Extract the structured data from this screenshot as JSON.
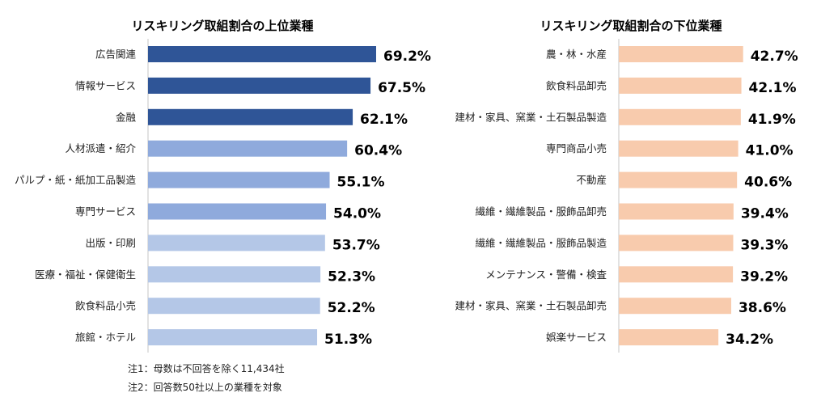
{
  "chart_data": [
    {
      "type": "bar",
      "orientation": "horizontal",
      "title": "リスキリング取組割合の上位業種",
      "categories": [
        "広告関連",
        "情報サービス",
        "金融",
        "人材派遣・紹介",
        "パルプ・紙・紙加工品製造",
        "専門サービス",
        "出版・印刷",
        "医療・福祉・保健衛生",
        "飲食料品小売",
        "旅館・ホテル"
      ],
      "values": [
        69.2,
        67.5,
        62.1,
        60.4,
        55.1,
        54.0,
        53.7,
        52.3,
        52.2,
        51.3
      ],
      "labels": [
        "69.2%",
        "67.5%",
        "62.1%",
        "60.4%",
        "55.1%",
        "54.0%",
        "53.7%",
        "52.3%",
        "52.2%",
        "51.3%"
      ],
      "colors": [
        "#2F5597",
        "#2F5597",
        "#2F5597",
        "#8FAADC",
        "#8FAADC",
        "#8FAADC",
        "#B4C7E7",
        "#B4C7E7",
        "#B4C7E7",
        "#B4C7E7"
      ],
      "grid": false
    },
    {
      "type": "bar",
      "orientation": "horizontal",
      "title": "リスキリング取組割合の下位業種",
      "categories": [
        "農・林・水産",
        "飲食料品卸売",
        "建材・家具、窯業・土石製品製造",
        "専門商品小売",
        "不動産",
        "繊維・繊維製品・服飾品卸売",
        "繊維・繊維製品・服飾品製造",
        "メンテナンス・警備・検査",
        "建材・家具、窯業・土石製品卸売",
        "娯楽サービス"
      ],
      "values": [
        42.7,
        42.1,
        41.9,
        41.0,
        40.6,
        39.4,
        39.3,
        39.2,
        38.6,
        34.2
      ],
      "labels": [
        "42.7%",
        "42.1%",
        "41.9%",
        "41.0%",
        "40.6%",
        "39.4%",
        "39.3%",
        "39.2%",
        "38.6%",
        "34.2%"
      ],
      "colors": [
        "#F8CBAD",
        "#F8CBAD",
        "#F8CBAD",
        "#F8CBAD",
        "#F8CBAD",
        "#F8CBAD",
        "#F8CBAD",
        "#F8CBAD",
        "#F8CBAD",
        "#F8CBAD"
      ],
      "grid": false
    }
  ],
  "notes": [
    "注1：母数は不回答を除く11,434社",
    "注2：回答数50社以上の業種を対象"
  ]
}
